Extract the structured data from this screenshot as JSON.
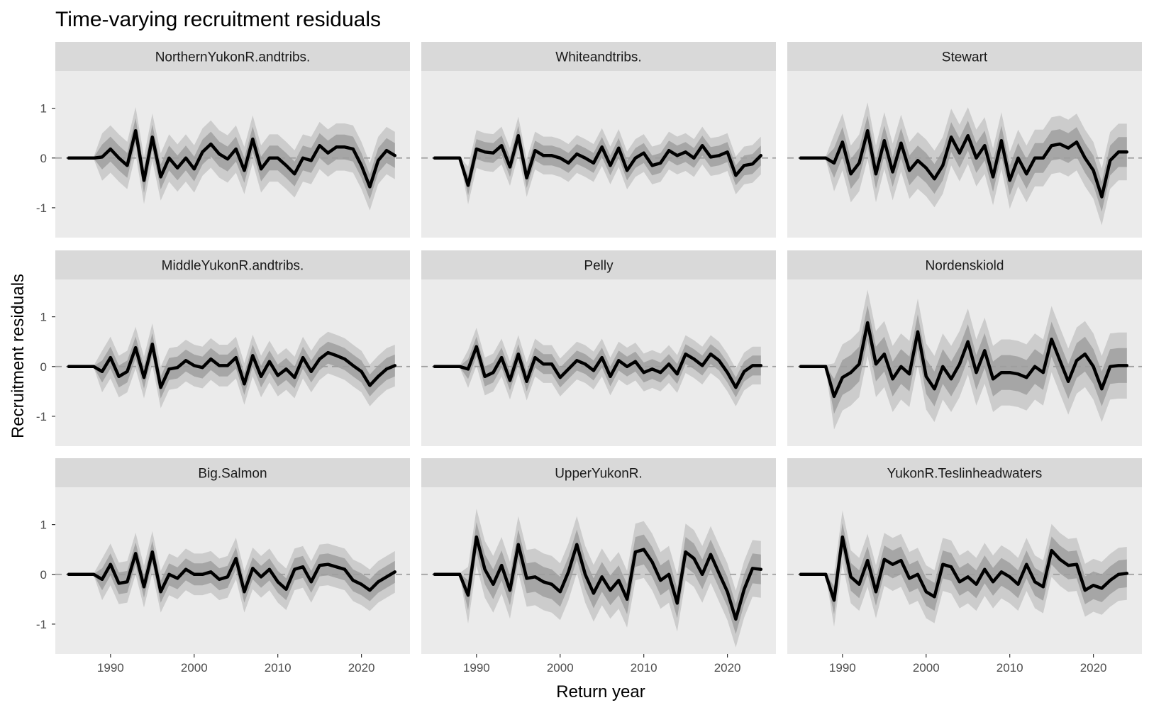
{
  "chart_data": {
    "type": "line",
    "title": "Time-varying recruitment residuals",
    "xlabel": "Return year",
    "ylabel": "Recruitment residuals",
    "xlim": [
      1983.4,
      2025.8
    ],
    "ylim": [
      -1.6,
      1.75
    ],
    "x_ticks": [
      1990,
      2000,
      2010,
      2020
    ],
    "x_tick_labels": [
      "1990",
      "2000",
      "2010",
      "2020"
    ],
    "y_ticks": [
      1,
      0,
      -1
    ],
    "y_tick_labels": [
      "1",
      "0",
      "-1"
    ],
    "reference_line": 0,
    "grid": false,
    "panel_background": "#ebebeb",
    "strip_background": "#d9d9d9",
    "colors": {
      "line": "#000000",
      "band_inner": "#a6a6a6",
      "band_outer": "#cccccc",
      "zero_line": "#9e9e9e"
    },
    "x": [
      1985,
      1986,
      1987,
      1988,
      1989,
      1990,
      1991,
      1992,
      1993,
      1994,
      1995,
      1996,
      1997,
      1998,
      1999,
      2000,
      2001,
      2002,
      2003,
      2004,
      2005,
      2006,
      2007,
      2008,
      2009,
      2010,
      2011,
      2012,
      2013,
      2014,
      2015,
      2016,
      2017,
      2018,
      2019,
      2020,
      2021,
      2022,
      2023,
      2024
    ],
    "panels": [
      {
        "name": "NorthernYukonR.andtribs.",
        "values": [
          0,
          0,
          0,
          0,
          0.02,
          0.18,
          0,
          -0.15,
          0.55,
          -0.45,
          0.42,
          -0.38,
          0,
          -0.2,
          0,
          -0.22,
          0.12,
          0.28,
          0.08,
          -0.02,
          0.18,
          -0.25,
          0.38,
          -0.22,
          0,
          0,
          -0.15,
          -0.32,
          0,
          -0.05,
          0.25,
          0.1,
          0.22,
          0.22,
          0.18,
          -0.15,
          -0.58,
          -0.05,
          0.15,
          0.05
        ],
        "spread": 0.25
      },
      {
        "name": "Whiteandtribs.",
        "values": [
          0,
          0,
          0,
          0,
          -0.55,
          0.18,
          0.12,
          0.1,
          0.25,
          -0.18,
          0.45,
          -0.4,
          0.15,
          0.05,
          0.05,
          0,
          -0.1,
          0.08,
          0,
          -0.1,
          0.22,
          -0.15,
          0.2,
          -0.25,
          0,
          0.1,
          -0.15,
          -0.1,
          0.15,
          0.05,
          0.12,
          0,
          0.25,
          0.02,
          0.05,
          0.12,
          -0.35,
          -0.15,
          -0.12,
          0.05
        ],
        "spread": 0.2
      },
      {
        "name": "Stewart",
        "values": [
          0,
          0,
          0,
          0,
          -0.1,
          0.32,
          -0.32,
          -0.1,
          0.55,
          -0.32,
          0.35,
          -0.28,
          0.3,
          -0.25,
          -0.05,
          -0.2,
          -0.42,
          -0.15,
          0.42,
          0.1,
          0.45,
          0,
          0.25,
          -0.38,
          0.35,
          -0.45,
          0,
          -0.32,
          0,
          0,
          0.25,
          0.28,
          0.2,
          0.32,
          0,
          -0.25,
          -0.78,
          -0.05,
          0.12,
          0.12
        ],
        "spread": 0.3
      },
      {
        "name": "MiddleYukonR.andtribs.",
        "values": [
          0,
          0,
          0,
          0,
          -0.1,
          0.18,
          -0.2,
          -0.1,
          0.38,
          -0.22,
          0.45,
          -0.42,
          -0.05,
          -0.02,
          0.12,
          0.02,
          -0.02,
          0.15,
          0.02,
          0.02,
          0.18,
          -0.35,
          0.22,
          -0.2,
          0.1,
          -0.18,
          -0.05,
          -0.22,
          0.18,
          -0.1,
          0.15,
          0.28,
          0.22,
          0.15,
          0.02,
          -0.1,
          -0.38,
          -0.2,
          -0.05,
          0.02
        ],
        "spread": 0.22
      },
      {
        "name": "Pelly",
        "values": [
          0,
          0,
          0,
          0,
          -0.05,
          0.4,
          -0.2,
          -0.12,
          0.18,
          -0.28,
          0.25,
          -0.3,
          0.18,
          0.05,
          0.05,
          -0.22,
          -0.05,
          0.12,
          0.05,
          -0.08,
          0.18,
          -0.2,
          0.12,
          0,
          0.1,
          -0.12,
          -0.05,
          -0.12,
          0.05,
          -0.15,
          0.25,
          0.15,
          0.02,
          0.25,
          0.12,
          -0.12,
          -0.42,
          -0.1,
          0.02,
          0.02
        ],
        "spread": 0.2
      },
      {
        "name": "Nordenskiold",
        "values": [
          0,
          0,
          0,
          0,
          -0.6,
          -0.22,
          -0.12,
          0.05,
          0.88,
          0.05,
          0.25,
          -0.25,
          0,
          -0.15,
          0.7,
          -0.2,
          -0.45,
          0,
          -0.25,
          0.05,
          0.5,
          -0.12,
          0.32,
          -0.25,
          -0.12,
          -0.12,
          -0.15,
          -0.22,
          0,
          -0.12,
          0.55,
          0.12,
          -0.3,
          0.12,
          0.25,
          0,
          -0.45,
          0,
          0.02,
          0.02
        ],
        "spread": 0.35
      },
      {
        "name": "Big.Salmon",
        "values": [
          0,
          0,
          0,
          0,
          -0.1,
          0.2,
          -0.18,
          -0.15,
          0.42,
          -0.25,
          0.45,
          -0.35,
          0,
          -0.08,
          0.1,
          0,
          0,
          0.05,
          -0.1,
          -0.05,
          0.32,
          -0.35,
          0.12,
          -0.05,
          0.1,
          -0.15,
          -0.3,
          0.1,
          0.15,
          -0.15,
          0.18,
          0.2,
          0.15,
          0.1,
          -0.12,
          -0.2,
          -0.32,
          -0.15,
          -0.05,
          0.05
        ],
        "spread": 0.22
      },
      {
        "name": "UpperYukonR.",
        "values": [
          0,
          0,
          0,
          0,
          -0.42,
          0.75,
          0.1,
          -0.2,
          0.18,
          -0.32,
          0.6,
          -0.08,
          -0.05,
          -0.15,
          -0.2,
          -0.35,
          0.05,
          0.6,
          0,
          -0.38,
          -0.05,
          -0.32,
          -0.12,
          -0.5,
          0.45,
          0.5,
          0.25,
          -0.12,
          0,
          -0.58,
          0.45,
          0.32,
          0,
          0.4,
          0.02,
          -0.35,
          -0.9,
          -0.3,
          0.12,
          0.1
        ],
        "spread": 0.3
      },
      {
        "name": "YukonR.Teslinheadwaters",
        "values": [
          0,
          0,
          0,
          0,
          -0.52,
          0.75,
          -0.05,
          -0.2,
          0.28,
          -0.35,
          0.3,
          0.2,
          0.28,
          -0.08,
          0,
          -0.35,
          -0.45,
          0.2,
          0.15,
          -0.15,
          -0.05,
          -0.2,
          0.1,
          -0.15,
          0.05,
          -0.05,
          -0.2,
          0.2,
          -0.15,
          -0.25,
          0.48,
          0.3,
          0.18,
          0.2,
          -0.32,
          -0.22,
          -0.28,
          -0.12,
          0,
          0.02
        ],
        "spread": 0.28
      }
    ]
  }
}
